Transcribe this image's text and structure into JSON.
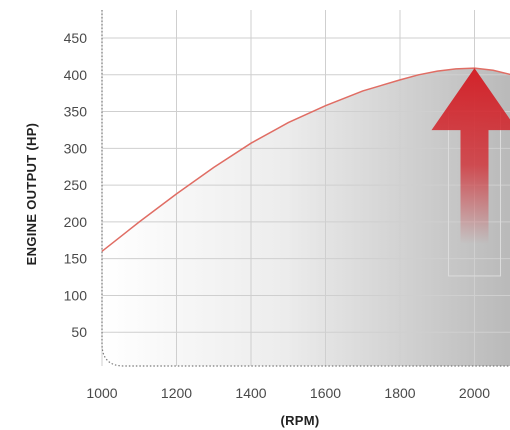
{
  "chart_data": {
    "type": "area",
    "title": "",
    "xlabel": "(RPM)",
    "ylabel": "ENGINE OUTPUT (HP)",
    "xlim": [
      1000,
      2100
    ],
    "ylim": [
      0,
      480
    ],
    "x_ticks": [
      1000,
      1200,
      1400,
      1600,
      1800,
      2000
    ],
    "y_ticks": [
      50,
      100,
      150,
      200,
      250,
      300,
      350,
      400,
      450
    ],
    "grid": true,
    "series": [
      {
        "x": [
          1000,
          1100,
          1200,
          1300,
          1400,
          1500,
          1600,
          1700,
          1800,
          1850,
          1900,
          1950,
          2000,
          2050,
          2100
        ],
        "y": [
          160,
          200,
          238,
          274,
          307,
          335,
          358,
          378,
          393,
          400,
          405,
          408,
          409,
          406,
          400
        ]
      }
    ],
    "annotations": [
      {
        "type": "up-arrow",
        "x": 2000,
        "y_from": 170,
        "y_to": 409
      }
    ],
    "colors": {
      "line": "#e06d64",
      "arrow": "#d2232a",
      "grid": "#cfcfcf"
    }
  }
}
